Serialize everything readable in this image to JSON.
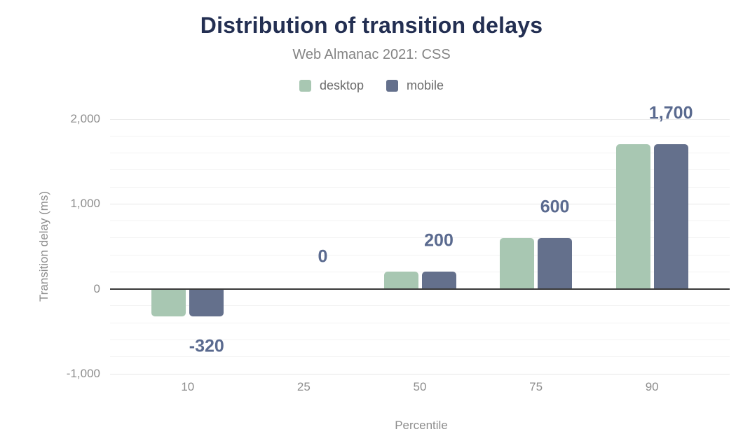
{
  "chart_data": {
    "type": "bar",
    "title": "Distribution of transition delays",
    "subtitle": "Web Almanac 2021: CSS",
    "xlabel": "Percentile",
    "ylabel": "Transition delay (ms)",
    "categories": [
      "10",
      "25",
      "50",
      "75",
      "90"
    ],
    "series": [
      {
        "name": "desktop",
        "color": "#a8c7b2",
        "values": [
          -320,
          0,
          200,
          600,
          1700
        ]
      },
      {
        "name": "mobile",
        "color": "#64708c",
        "values": [
          -320,
          0,
          200,
          600,
          1700
        ]
      }
    ],
    "data_labels": [
      "-320",
      "0",
      "200",
      "600",
      "1,700"
    ],
    "ylim": [
      -1000,
      2000
    ],
    "yticks": [
      2000,
      1000,
      0,
      -1000
    ],
    "ytick_labels": [
      "2,000",
      "1,000",
      "0",
      "-1,000"
    ],
    "minor_grid_step": 200,
    "grid": true,
    "legend_position": "top",
    "colors": {
      "title": "#232f52",
      "subtitle": "#848484",
      "legend_text": "#6b6b6b",
      "axis_text": "#8d8d8d",
      "data_label": "#5a6a8f",
      "grid_minor": "#f3f3f3",
      "grid_major": "#e7e7e7",
      "zero_line": "#3a3a3a",
      "background": "#ffffff"
    }
  }
}
